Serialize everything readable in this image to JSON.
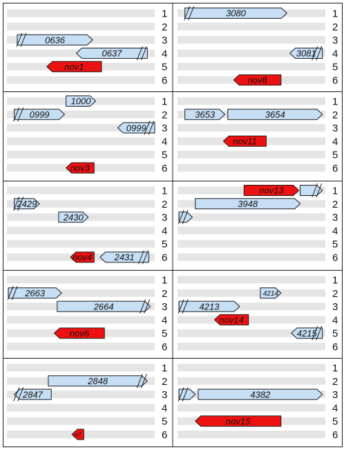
{
  "colors": {
    "known_fill": "#c6dff5",
    "novel_fill": "#ee1111",
    "track_fill": "#e5e5e5",
    "border": "#1a1a1a",
    "text": "#111111"
  },
  "frame_labels": [
    "1",
    "2",
    "3",
    "4",
    "5",
    "6"
  ],
  "panels": [
    {
      "genes": [
        {
          "label": "0636",
          "frame": 3,
          "start": 0.07,
          "end": 0.58,
          "type": "known",
          "dir": "right",
          "cut_left": true,
          "cut_right": false
        },
        {
          "label": "0637",
          "frame": 4,
          "start": 0.47,
          "end": 0.95,
          "type": "known",
          "dir": "left",
          "cut_left": false,
          "cut_right": true
        },
        {
          "label": "nov1",
          "frame": 5,
          "start": 0.27,
          "end": 0.64,
          "type": "novel",
          "dir": "left",
          "cut_left": false,
          "cut_right": false
        }
      ]
    },
    {
      "genes": [
        {
          "label": "3080",
          "frame": 1,
          "start": 0.05,
          "end": 0.74,
          "type": "known",
          "dir": "right",
          "cut_left": true,
          "cut_right": false
        },
        {
          "label": "3081",
          "frame": 4,
          "start": 0.76,
          "end": 0.98,
          "type": "known",
          "dir": "left",
          "cut_left": false,
          "cut_right": true
        },
        {
          "label": "nov8",
          "frame": 6,
          "start": 0.38,
          "end": 0.7,
          "type": "novel",
          "dir": "left",
          "cut_left": false,
          "cut_right": false
        }
      ]
    },
    {
      "genes": [
        {
          "label": "1000",
          "frame": 1,
          "start": 0.4,
          "end": 0.6,
          "type": "known",
          "dir": "right",
          "cut_left": false,
          "cut_right": false
        },
        {
          "label": "0999",
          "frame": 2,
          "start": 0.05,
          "end": 0.39,
          "type": "known",
          "dir": "right",
          "cut_left": true,
          "cut_right": false
        },
        {
          "label": "0999",
          "frame": 3,
          "start": 0.75,
          "end": 1.0,
          "type": "known",
          "dir": "left",
          "cut_left": false,
          "cut_right": true
        },
        {
          "label": "nov3",
          "frame": 6,
          "start": 0.4,
          "end": 0.59,
          "type": "novel",
          "dir": "left",
          "cut_left": false,
          "cut_right": false
        }
      ]
    },
    {
      "genes": [
        {
          "label": "3653",
          "frame": 2,
          "start": 0.05,
          "end": 0.32,
          "type": "known",
          "dir": "right",
          "cut_left": false,
          "cut_right": false
        },
        {
          "label": "3654",
          "frame": 2,
          "start": 0.34,
          "end": 0.98,
          "type": "known",
          "dir": "right",
          "cut_left": false,
          "cut_right": false
        },
        {
          "label": "nov11",
          "frame": 4,
          "start": 0.31,
          "end": 0.6,
          "type": "novel",
          "dir": "left",
          "cut_left": false,
          "cut_right": false
        }
      ]
    },
    {
      "genes": [
        {
          "label": "2429",
          "frame": 2,
          "start": 0.05,
          "end": 0.22,
          "type": "known",
          "dir": "right",
          "cut_left": true,
          "cut_right": false
        },
        {
          "label": "2430",
          "frame": 3,
          "start": 0.35,
          "end": 0.55,
          "type": "known",
          "dir": "right",
          "cut_left": false,
          "cut_right": false
        },
        {
          "label": "nov4",
          "frame": 6,
          "start": 0.43,
          "end": 0.59,
          "type": "novel",
          "dir": "left",
          "cut_left": false,
          "cut_right": false
        },
        {
          "label": "2431",
          "frame": 6,
          "start": 0.63,
          "end": 0.96,
          "type": "known",
          "dir": "left",
          "cut_left": false,
          "cut_right": true
        }
      ]
    },
    {
      "genes": [
        {
          "label": "nov13",
          "frame": 1,
          "start": 0.45,
          "end": 0.82,
          "type": "novel",
          "dir": "right",
          "cut_left": false,
          "cut_right": false
        },
        {
          "label": "",
          "frame": 1,
          "start": 0.83,
          "end": 0.98,
          "type": "known",
          "dir": "right",
          "cut_left": false,
          "cut_right": true
        },
        {
          "label": "3948",
          "frame": 2,
          "start": 0.12,
          "end": 0.83,
          "type": "known",
          "dir": "right",
          "cut_left": false,
          "cut_right": false
        },
        {
          "label": "",
          "frame": 3,
          "start": 0.01,
          "end": 0.1,
          "type": "known",
          "dir": "right",
          "cut_left": true,
          "cut_right": false
        }
      ]
    },
    {
      "genes": [
        {
          "label": "2663",
          "frame": 2,
          "start": 0.01,
          "end": 0.37,
          "type": "known",
          "dir": "right",
          "cut_left": true,
          "cut_right": false
        },
        {
          "label": "2664",
          "frame": 3,
          "start": 0.34,
          "end": 0.97,
          "type": "known",
          "dir": "right",
          "cut_left": false,
          "cut_right": true
        },
        {
          "label": "nov6",
          "frame": 5,
          "start": 0.32,
          "end": 0.66,
          "type": "novel",
          "dir": "left",
          "cut_left": false,
          "cut_right": false
        }
      ]
    },
    {
      "genes": [
        {
          "label": "4214",
          "frame": 2,
          "start": 0.56,
          "end": 0.7,
          "type": "known",
          "dir": "right",
          "cut_left": false,
          "cut_right": false
        },
        {
          "label": "4213",
          "frame": 3,
          "start": 0.01,
          "end": 0.42,
          "type": "known",
          "dir": "right",
          "cut_left": true,
          "cut_right": false
        },
        {
          "label": "nov14",
          "frame": 4,
          "start": 0.25,
          "end": 0.48,
          "type": "novel",
          "dir": "left",
          "cut_left": false,
          "cut_right": false
        },
        {
          "label": "4215",
          "frame": 5,
          "start": 0.77,
          "end": 0.98,
          "type": "known",
          "dir": "left",
          "cut_left": false,
          "cut_right": true
        }
      ]
    },
    {
      "genes": [
        {
          "label": "2848",
          "frame": 2,
          "start": 0.28,
          "end": 0.95,
          "type": "known",
          "dir": "right",
          "cut_left": false,
          "cut_right": true
        },
        {
          "label": "2847",
          "frame": 3,
          "start": 0.05,
          "end": 0.3,
          "type": "known",
          "dir": "left",
          "cut_left": true,
          "cut_right": false
        },
        {
          "label": "n7",
          "frame": 6,
          "start": 0.44,
          "end": 0.52,
          "type": "novel",
          "dir": "left",
          "cut_left": false,
          "cut_right": false
        }
      ]
    },
    {
      "genes": [
        {
          "label": "",
          "frame": 3,
          "start": 0.01,
          "end": 0.12,
          "type": "known",
          "dir": "right",
          "cut_left": true,
          "cut_right": false
        },
        {
          "label": "4382",
          "frame": 3,
          "start": 0.14,
          "end": 0.98,
          "type": "known",
          "dir": "right",
          "cut_left": false,
          "cut_right": false
        },
        {
          "label": "nov15",
          "frame": 5,
          "start": 0.12,
          "end": 0.7,
          "type": "novel",
          "dir": "left",
          "cut_left": false,
          "cut_right": false
        }
      ]
    }
  ]
}
